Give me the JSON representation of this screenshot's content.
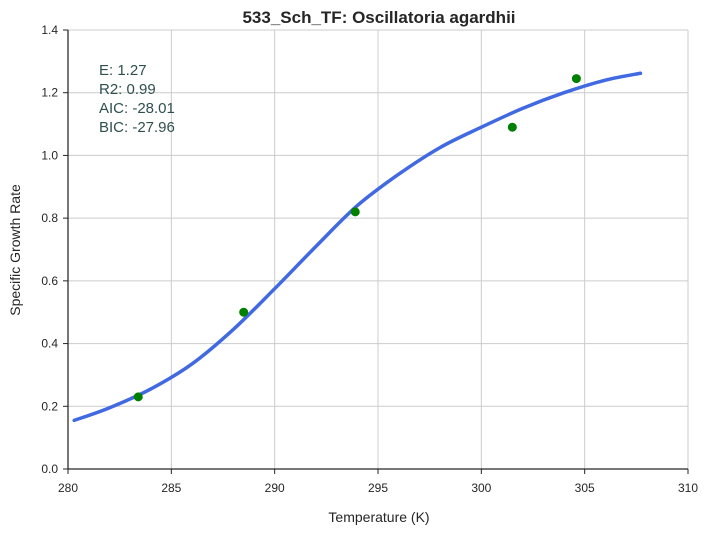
{
  "chart_data": {
    "type": "scatter",
    "title": "533_Sch_TF: Oscillatoria agardhii",
    "xlabel": "Temperature (K)",
    "ylabel": "Specific Growth Rate",
    "xlim": [
      280,
      310
    ],
    "ylim": [
      0.0,
      1.4
    ],
    "x_ticks": [
      "280",
      "285",
      "290",
      "295",
      "300",
      "305",
      "310"
    ],
    "y_ticks": [
      "0.0",
      "0.2",
      "0.4",
      "0.6",
      "0.8",
      "1.0",
      "1.2",
      "1.4"
    ],
    "grid": true,
    "series": [
      {
        "kind": "points",
        "color": "#008000",
        "x": [
          283.4,
          288.5,
          293.9,
          301.5,
          304.6
        ],
        "y": [
          0.23,
          0.5,
          0.82,
          1.09,
          1.245
        ]
      },
      {
        "kind": "line",
        "color": "#4169e1",
        "x": [
          280.3,
          282,
          284,
          286,
          288,
          290,
          292,
          294,
          296,
          298,
          300,
          302,
          304,
          306,
          307.7
        ],
        "y": [
          0.155,
          0.195,
          0.255,
          0.335,
          0.445,
          0.575,
          0.71,
          0.84,
          0.94,
          1.025,
          1.09,
          1.15,
          1.2,
          1.24,
          1.262
        ]
      }
    ],
    "annotations": [
      "E:  1.27",
      "R2:  0.99",
      "AIC: -28.01",
      "BIC: -27.96"
    ]
  }
}
